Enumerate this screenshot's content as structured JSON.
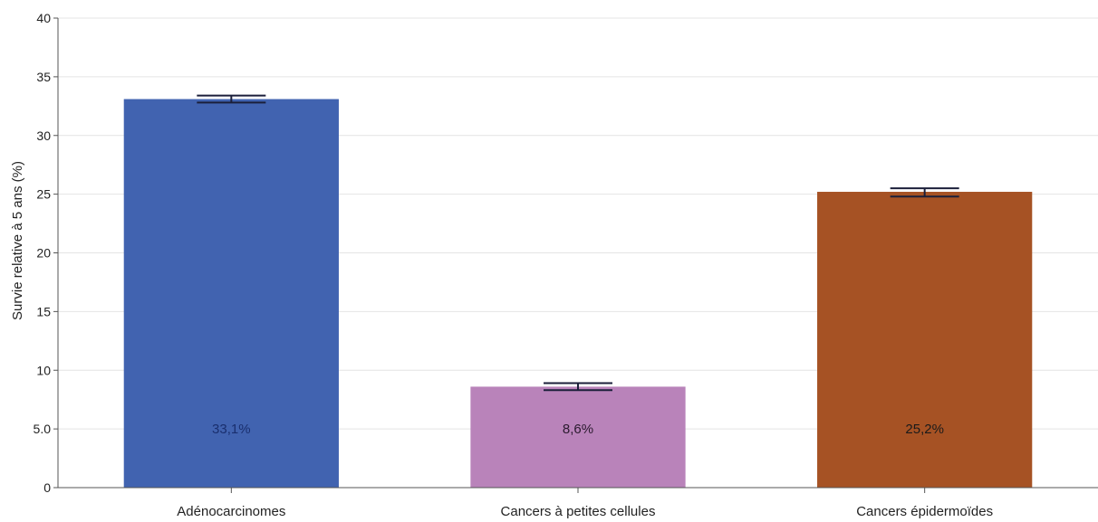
{
  "chart_data": {
    "type": "bar",
    "title": "",
    "xlabel": "",
    "ylabel": "Survie relative à 5 ans (%)",
    "ylim": [
      0,
      40
    ],
    "yticks": [
      0,
      5,
      10,
      15,
      20,
      25,
      30,
      35,
      40
    ],
    "ytick_labels": [
      "0",
      "5.0",
      "10",
      "15",
      "20",
      "25",
      "30",
      "35",
      "40"
    ],
    "grid": true,
    "legend": "none",
    "categories": [
      "Adénocarcinomes",
      "Cancers à petites cellules",
      "Cancers épidermoïdes"
    ],
    "values": [
      33.1,
      8.6,
      25.2
    ],
    "error_low": [
      32.8,
      8.3,
      24.8
    ],
    "error_high": [
      33.4,
      8.9,
      25.5
    ],
    "data_labels": [
      "33,1%",
      "8,6%",
      "25,2%"
    ],
    "colors": [
      "#4163b0",
      "#b983ba",
      "#a65224"
    ],
    "label_colors": [
      "#1a2f6e",
      "#2a1a2e",
      "#1a1a1a"
    ],
    "data_label_value": 5
  }
}
